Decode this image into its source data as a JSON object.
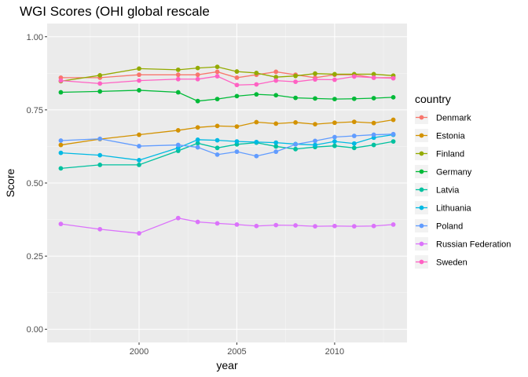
{
  "chart_data": {
    "type": "line",
    "title": "WGI Scores (OHI global rescale",
    "xlabel": "year",
    "ylabel": "Score",
    "xlim": [
      1995.3,
      2013.7
    ],
    "ylim": [
      -0.045,
      1.045
    ],
    "x_ticks": [
      2000,
      2005,
      2010
    ],
    "x_minor_ticks": [
      1997.5,
      2002.5,
      2007.5,
      2012.5
    ],
    "y_ticks": [
      0.0,
      0.25,
      0.5,
      0.75,
      1.0
    ],
    "y_tick_labels": [
      "0.00",
      "0.25",
      "0.50",
      "0.75",
      "1.00"
    ],
    "y_minor_ticks": [
      0.125,
      0.375,
      0.625,
      0.875
    ],
    "grid": true,
    "legend_title": "country",
    "legend_position": "right",
    "x": [
      1996,
      1998,
      2000,
      2002,
      2003,
      2004,
      2005,
      2006,
      2007,
      2008,
      2009,
      2010,
      2011,
      2012,
      2013
    ],
    "series": [
      {
        "name": "Denmark",
        "color": "#F8766D",
        "values": [
          0.86,
          0.86,
          0.87,
          0.87,
          0.87,
          0.88,
          0.86,
          0.87,
          0.88,
          0.87,
          0.86,
          0.87,
          0.87,
          0.86,
          0.86
        ]
      },
      {
        "name": "Estonia",
        "color": "#D39200",
        "values": [
          0.63,
          0.65,
          0.665,
          0.68,
          0.69,
          0.695,
          0.693,
          0.708,
          0.703,
          0.707,
          0.701,
          0.706,
          0.709,
          0.705,
          0.716
        ]
      },
      {
        "name": "Finland",
        "color": "#93AA00",
        "values": [
          0.848,
          0.868,
          0.891,
          0.887,
          0.893,
          0.897,
          0.881,
          0.876,
          0.862,
          0.866,
          0.874,
          0.872,
          0.872,
          0.872,
          0.867
        ]
      },
      {
        "name": "Germany",
        "color": "#00BA38",
        "values": [
          0.81,
          0.813,
          0.817,
          0.81,
          0.78,
          0.787,
          0.797,
          0.803,
          0.8,
          0.791,
          0.789,
          0.787,
          0.788,
          0.79,
          0.793
        ]
      },
      {
        "name": "Latvia",
        "color": "#00C19F",
        "values": [
          0.55,
          0.562,
          0.562,
          0.61,
          0.636,
          0.62,
          0.632,
          0.638,
          0.625,
          0.616,
          0.623,
          0.627,
          0.62,
          0.63,
          0.642
        ]
      },
      {
        "name": "Lithuania",
        "color": "#00B9E3",
        "values": [
          0.603,
          0.595,
          0.578,
          0.62,
          0.648,
          0.646,
          0.642,
          0.64,
          0.638,
          0.633,
          0.63,
          0.642,
          0.635,
          0.655,
          0.665
        ]
      },
      {
        "name": "Poland",
        "color": "#619CFF",
        "values": [
          0.645,
          0.651,
          0.626,
          0.63,
          0.622,
          0.597,
          0.607,
          0.592,
          0.607,
          0.632,
          0.644,
          0.657,
          0.661,
          0.665,
          0.667
        ]
      },
      {
        "name": "Russian Federation",
        "color": "#DB72FB",
        "values": [
          0.36,
          0.342,
          0.328,
          0.38,
          0.367,
          0.362,
          0.358,
          0.353,
          0.356,
          0.355,
          0.352,
          0.353,
          0.352,
          0.353,
          0.358
        ]
      },
      {
        "name": "Sweden",
        "color": "#FF61C3",
        "values": [
          0.85,
          0.84,
          0.85,
          0.855,
          0.855,
          0.865,
          0.835,
          0.837,
          0.85,
          0.846,
          0.854,
          0.853,
          0.864,
          0.86,
          0.858
        ]
      }
    ]
  }
}
